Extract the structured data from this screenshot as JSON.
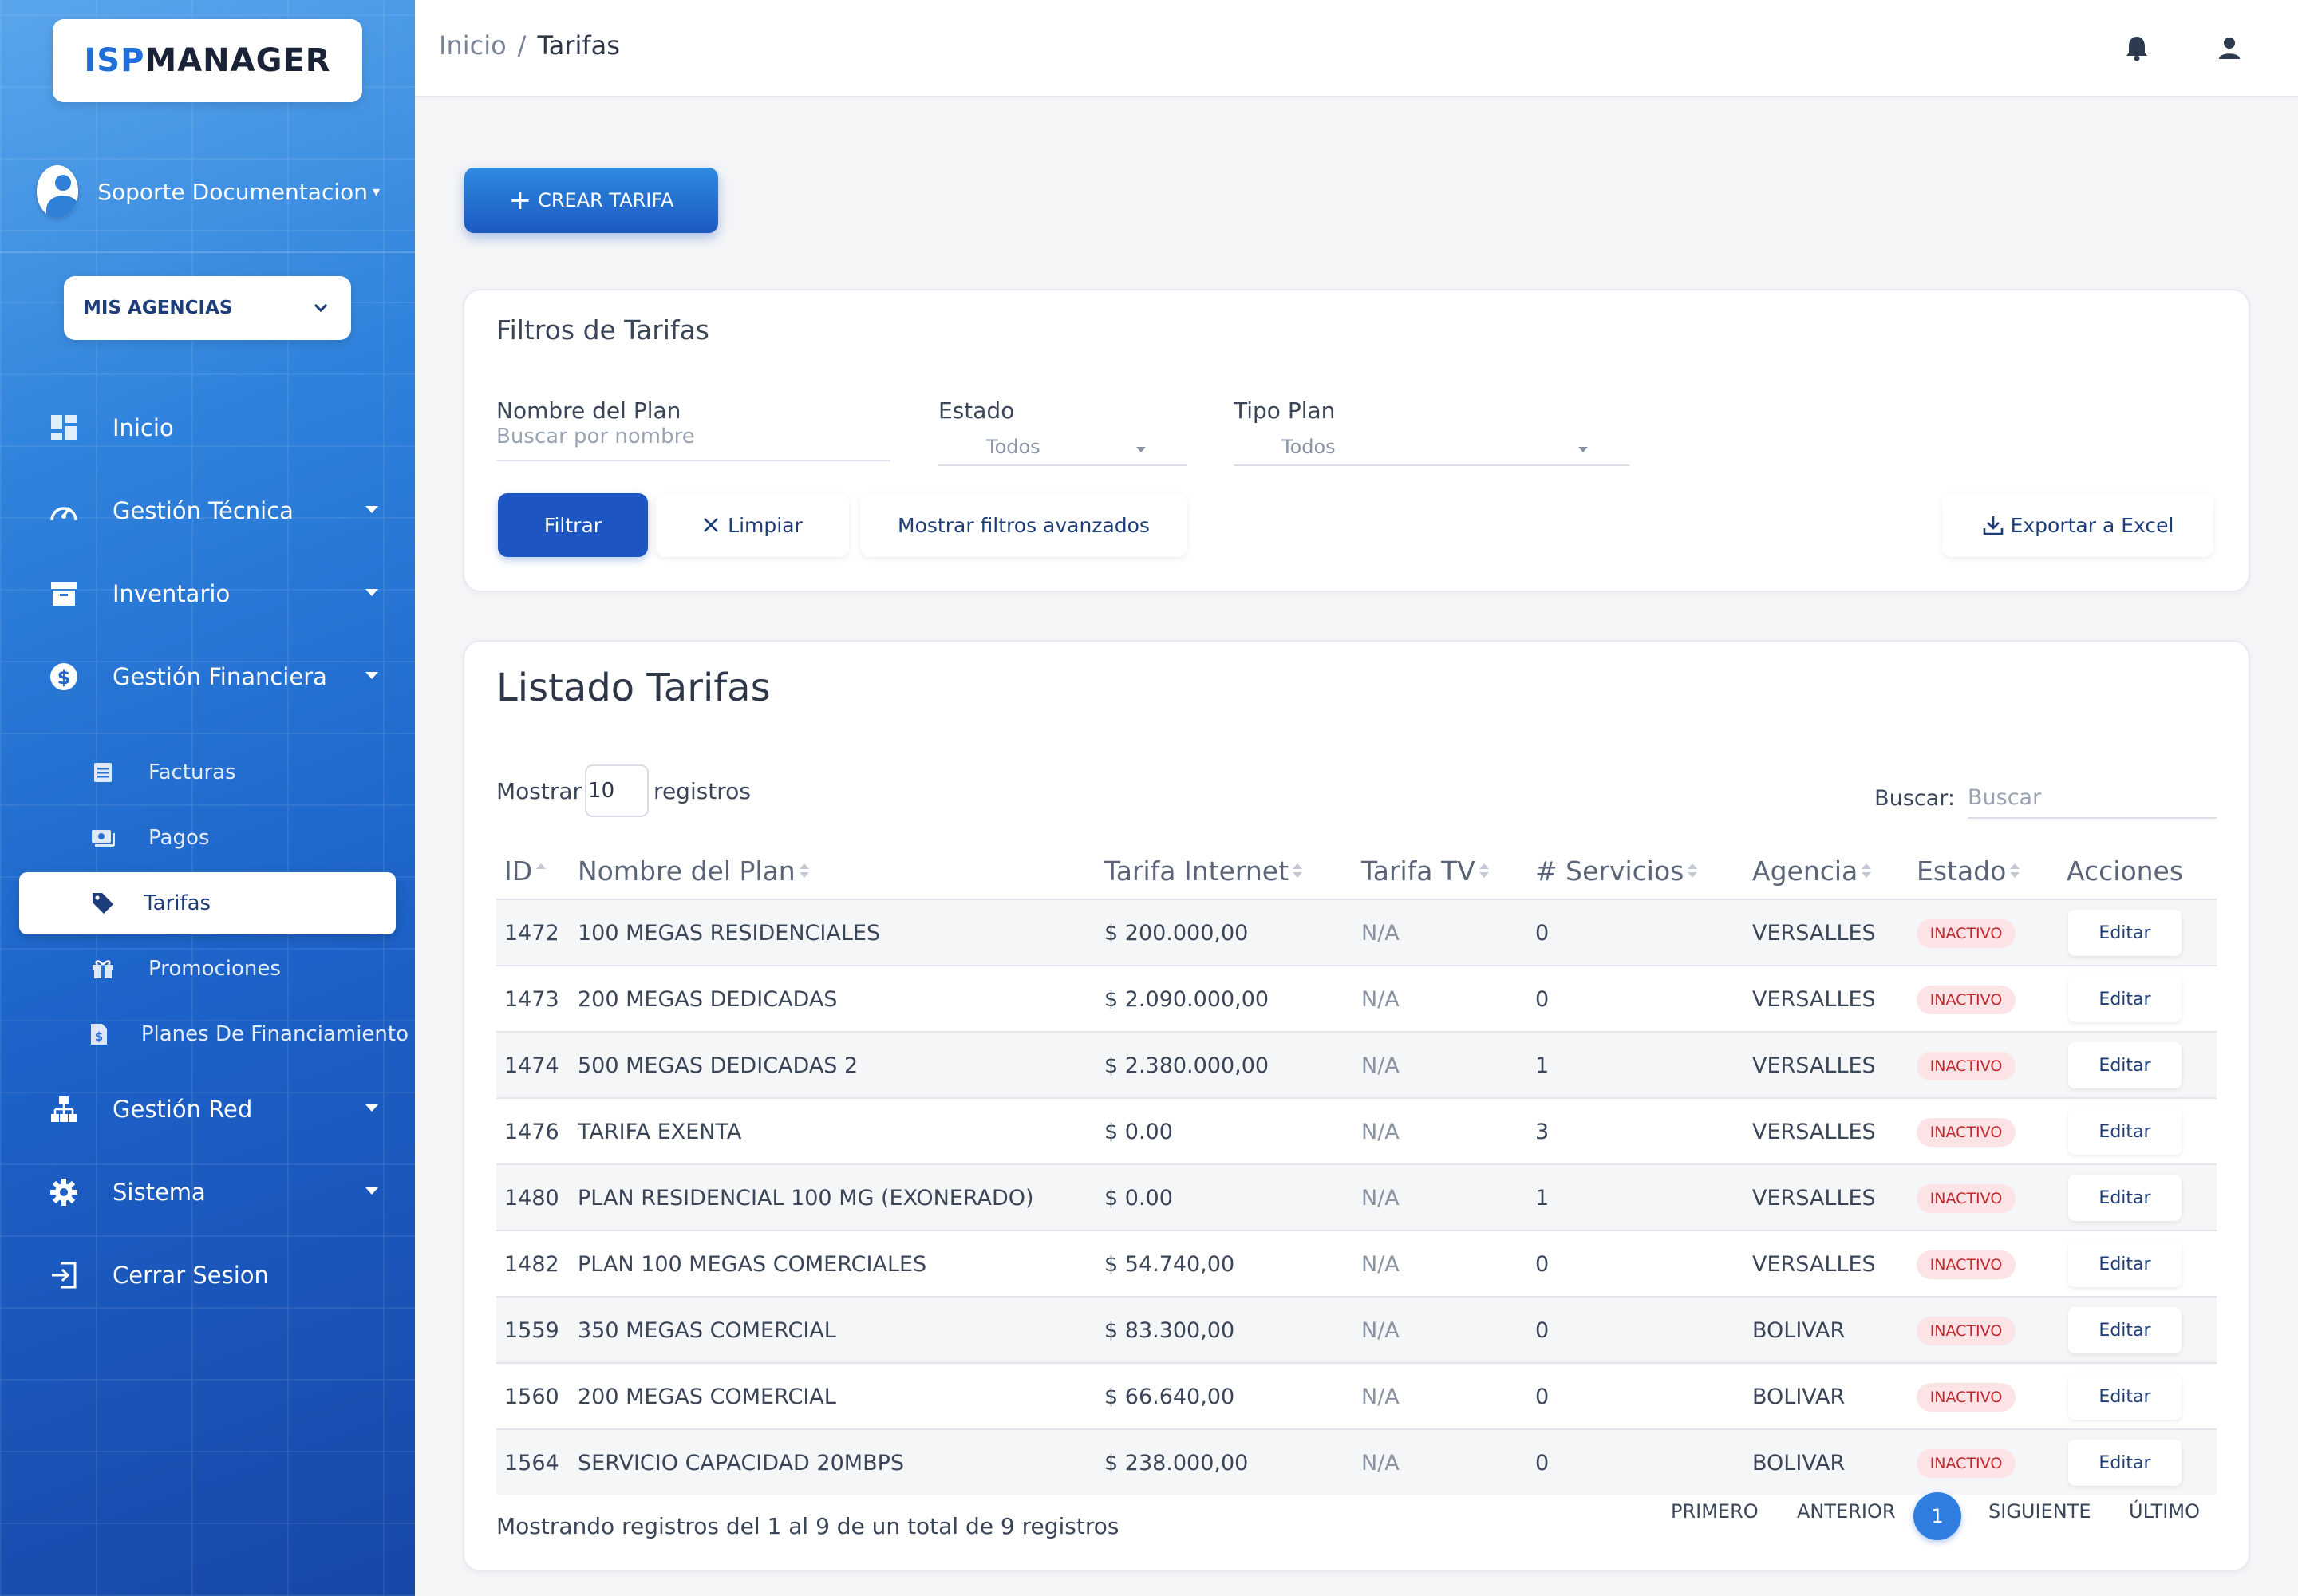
{
  "app": {
    "logo_isp": "ISP",
    "logo_manager": "MANAGER"
  },
  "user": {
    "name": "Soporte Documentacion"
  },
  "agency_selector": {
    "label": "MIS AGENCIAS"
  },
  "sidebar": {
    "items": [
      {
        "label": "Inicio",
        "icon": "dashboard-icon"
      },
      {
        "label": "Gestión Técnica",
        "icon": "speedometer-icon"
      },
      {
        "label": "Inventario",
        "icon": "archive-icon"
      },
      {
        "label": "Gestión Financiera",
        "icon": "dollar-icon"
      },
      {
        "label": "Gestión Red",
        "icon": "sitemap-icon"
      },
      {
        "label": "Sistema",
        "icon": "gear-icon"
      },
      {
        "label": "Cerrar Sesion",
        "icon": "logout-icon"
      }
    ],
    "financial_sub": [
      {
        "label": "Facturas",
        "icon": "invoice-icon"
      },
      {
        "label": "Pagos",
        "icon": "money-icon"
      },
      {
        "label": "Tarifas",
        "icon": "tag-icon"
      },
      {
        "label": "Promociones",
        "icon": "gift-icon"
      },
      {
        "label": "Planes De Financiamiento",
        "icon": "file-dollar-icon"
      }
    ]
  },
  "breadcrumb": {
    "home": "Inicio",
    "separator": "/",
    "current": "Tarifas"
  },
  "create_button": {
    "label": "CREAR TARIFA"
  },
  "filters": {
    "title": "Filtros de Tarifas",
    "plan_name_label": "Nombre del Plan",
    "plan_name_placeholder": "Buscar por nombre",
    "status_label": "Estado",
    "status_value": "Todos",
    "plan_type_label": "Tipo Plan",
    "plan_type_value": "Todos",
    "filter_button": "Filtrar",
    "clear_button": "Limpiar",
    "advanced_button": "Mostrar filtros avanzados",
    "export_button": "Exportar a Excel"
  },
  "listing": {
    "title": "Listado Tarifas",
    "show_label": "Mostrar",
    "show_value": "10",
    "records_label": "registros",
    "search_label": "Buscar:",
    "search_placeholder": "Buscar",
    "columns": [
      "ID",
      "Nombre del Plan",
      "Tarifa Internet",
      "Tarifa TV",
      "# Servicios",
      "Agencia",
      "Estado",
      "Acciones"
    ],
    "rows": [
      {
        "id": "1472",
        "name": "100 MEGAS RESIDENCIALES",
        "internet": "$ 200.000,00",
        "tv": "N/A",
        "services": "0",
        "agency": "VERSALLES",
        "status": "INACTIVO",
        "action": "Editar"
      },
      {
        "id": "1473",
        "name": "200 MEGAS DEDICADAS",
        "internet": "$ 2.090.000,00",
        "tv": "N/A",
        "services": "0",
        "agency": "VERSALLES",
        "status": "INACTIVO",
        "action": "Editar"
      },
      {
        "id": "1474",
        "name": "500 MEGAS DEDICADAS 2",
        "internet": "$ 2.380.000,00",
        "tv": "N/A",
        "services": "1",
        "agency": "VERSALLES",
        "status": "INACTIVO",
        "action": "Editar"
      },
      {
        "id": "1476",
        "name": "TARIFA EXENTA",
        "internet": "$ 0.00",
        "tv": "N/A",
        "services": "3",
        "agency": "VERSALLES",
        "status": "INACTIVO",
        "action": "Editar"
      },
      {
        "id": "1480",
        "name": "PLAN RESIDENCIAL 100 MG (EXONERADO)",
        "internet": "$ 0.00",
        "tv": "N/A",
        "services": "1",
        "agency": "VERSALLES",
        "status": "INACTIVO",
        "action": "Editar"
      },
      {
        "id": "1482",
        "name": "PLAN 100 MEGAS COMERCIALES",
        "internet": "$ 54.740,00",
        "tv": "N/A",
        "services": "0",
        "agency": "VERSALLES",
        "status": "INACTIVO",
        "action": "Editar"
      },
      {
        "id": "1559",
        "name": "350 MEGAS COMERCIAL",
        "internet": "$ 83.300,00",
        "tv": "N/A",
        "services": "0",
        "agency": "BOLIVAR",
        "status": "INACTIVO",
        "action": "Editar"
      },
      {
        "id": "1560",
        "name": "200 MEGAS COMERCIAL",
        "internet": "$ 66.640,00",
        "tv": "N/A",
        "services": "0",
        "agency": "BOLIVAR",
        "status": "INACTIVO",
        "action": "Editar"
      },
      {
        "id": "1564",
        "name": "SERVICIO CAPACIDAD 20MBPS",
        "internet": "$ 238.000,00",
        "tv": "N/A",
        "services": "0",
        "agency": "BOLIVAR",
        "status": "INACTIVO",
        "action": "Editar"
      }
    ],
    "footer_info": "Mostrando registros del 1 al 9 de un total de 9 registros",
    "pagination": {
      "first": "PRIMERO",
      "prev": "ANTERIOR",
      "current": "1",
      "next": "SIGUIENTE",
      "last": "ÚLTIMO"
    }
  },
  "colors": {
    "accent": "#1d56c3",
    "badge_bg": "#fbe3e6",
    "badge_text": "#c1272d"
  }
}
